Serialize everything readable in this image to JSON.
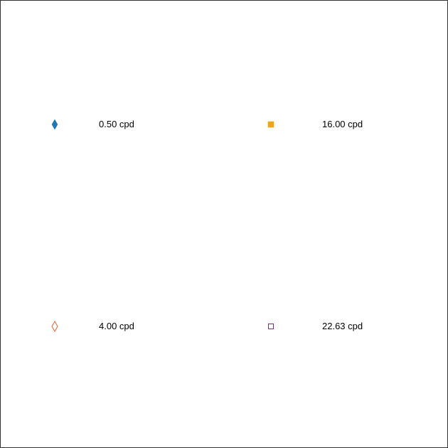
{
  "chart_data": {
    "type": "legend",
    "legend": [
      {
        "label": "0.50 cpd",
        "marker": "diamond-filled",
        "color": "#1f77b4"
      },
      {
        "label": "16.00 cpd",
        "marker": "square-filled",
        "color": "#f2a60f"
      },
      {
        "label": "4.00 cpd",
        "marker": "diamond-open",
        "color": "#e8622a"
      },
      {
        "label": "22.63 cpd",
        "marker": "square-open",
        "color": "#7b2d8b"
      }
    ]
  }
}
